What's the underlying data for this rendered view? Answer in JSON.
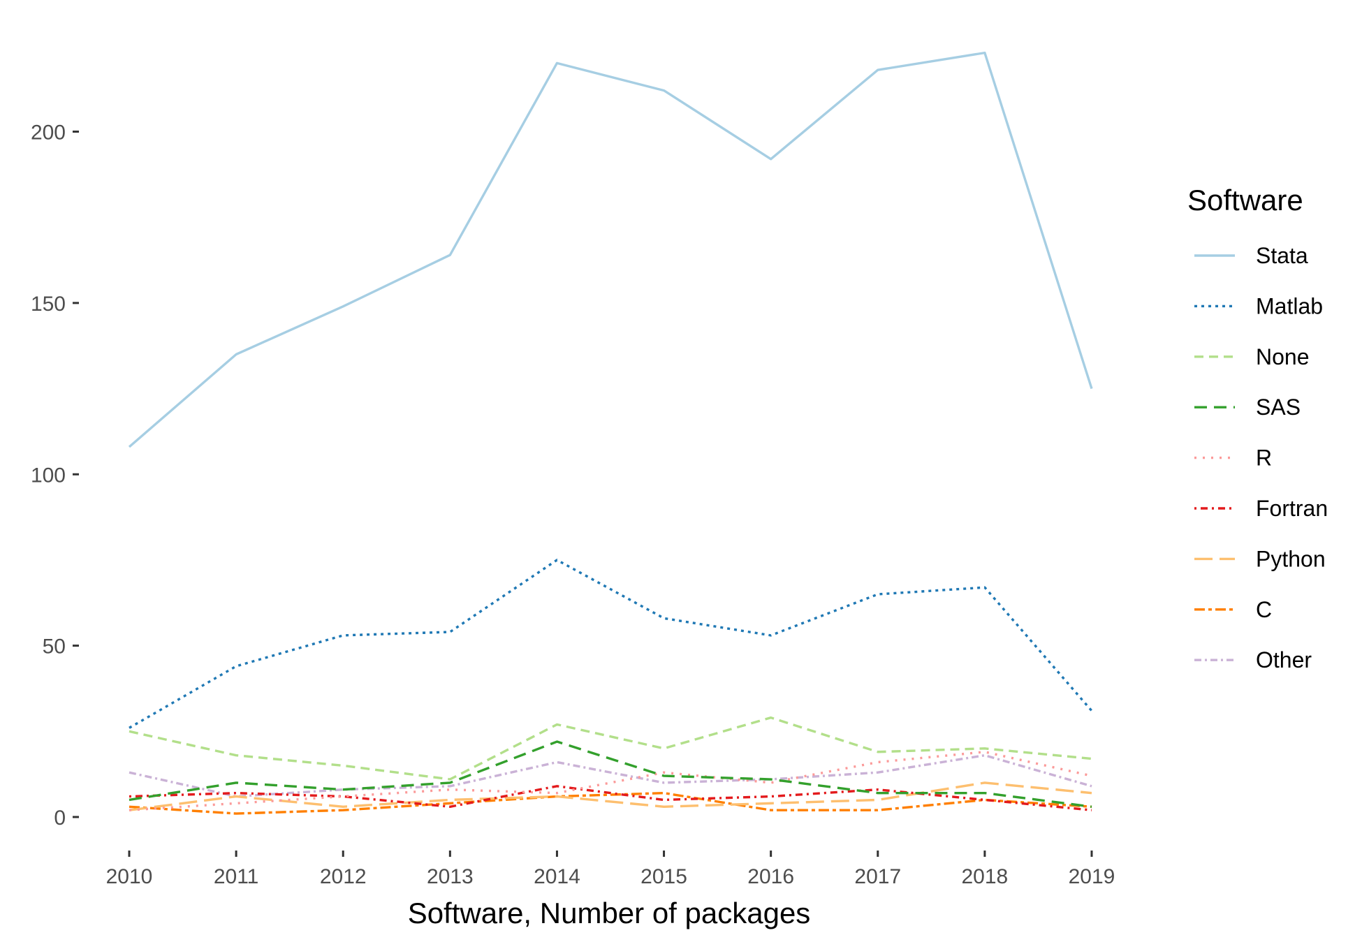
{
  "chart_data": {
    "type": "line",
    "title": "",
    "xlabel": "Software, Number of packages",
    "ylabel": "",
    "x": [
      2010,
      2011,
      2012,
      2013,
      2014,
      2015,
      2016,
      2017,
      2018,
      2019
    ],
    "x_ticks": [
      "2010",
      "2011",
      "2012",
      "2013",
      "2014",
      "2015",
      "2016",
      "2017",
      "2018",
      "2019"
    ],
    "y_ticks": [
      0,
      50,
      100,
      150,
      200
    ],
    "ylim": [
      -11,
      225
    ],
    "grid": false,
    "legend": {
      "title": "Software",
      "position": "right"
    },
    "series": [
      {
        "name": "Stata",
        "color": "#a6cee3",
        "dash": "solid",
        "values": [
          108,
          135,
          149,
          164,
          220,
          212,
          192,
          218,
          223,
          125
        ]
      },
      {
        "name": "Matlab",
        "color": "#1f78b4",
        "dash": "dotted",
        "values": [
          26,
          44,
          53,
          54,
          75,
          58,
          53,
          65,
          67,
          31
        ]
      },
      {
        "name": "None",
        "color": "#b2df8a",
        "dash": "dashed",
        "values": [
          25,
          18,
          15,
          11,
          27,
          20,
          29,
          19,
          20,
          17
        ]
      },
      {
        "name": "SAS",
        "color": "#33a02c",
        "dash": "longdash",
        "values": [
          5,
          10,
          8,
          10,
          22,
          12,
          11,
          7,
          7,
          3
        ]
      },
      {
        "name": "R",
        "color": "#fb9a99",
        "dash": "dotted2",
        "values": [
          2,
          4,
          6,
          8,
          7,
          13,
          10,
          16,
          19,
          12
        ]
      },
      {
        "name": "Fortran",
        "color": "#e31a1c",
        "dash": "dotdash",
        "values": [
          6,
          7,
          6,
          3,
          9,
          5,
          6,
          8,
          5,
          2
        ]
      },
      {
        "name": "Python",
        "color": "#fdbf6f",
        "dash": "longdash2",
        "values": [
          2,
          6,
          3,
          5,
          6,
          3,
          4,
          5,
          10,
          7
        ]
      },
      {
        "name": "C",
        "color": "#ff7f00",
        "dash": "twodash",
        "values": [
          3,
          1,
          2,
          4,
          6,
          7,
          2,
          2,
          5,
          3
        ]
      },
      {
        "name": "Other",
        "color": "#cab2d6",
        "dash": "twodash2",
        "values": [
          13,
          6,
          8,
          9,
          16,
          10,
          11,
          13,
          18,
          9
        ]
      }
    ]
  }
}
